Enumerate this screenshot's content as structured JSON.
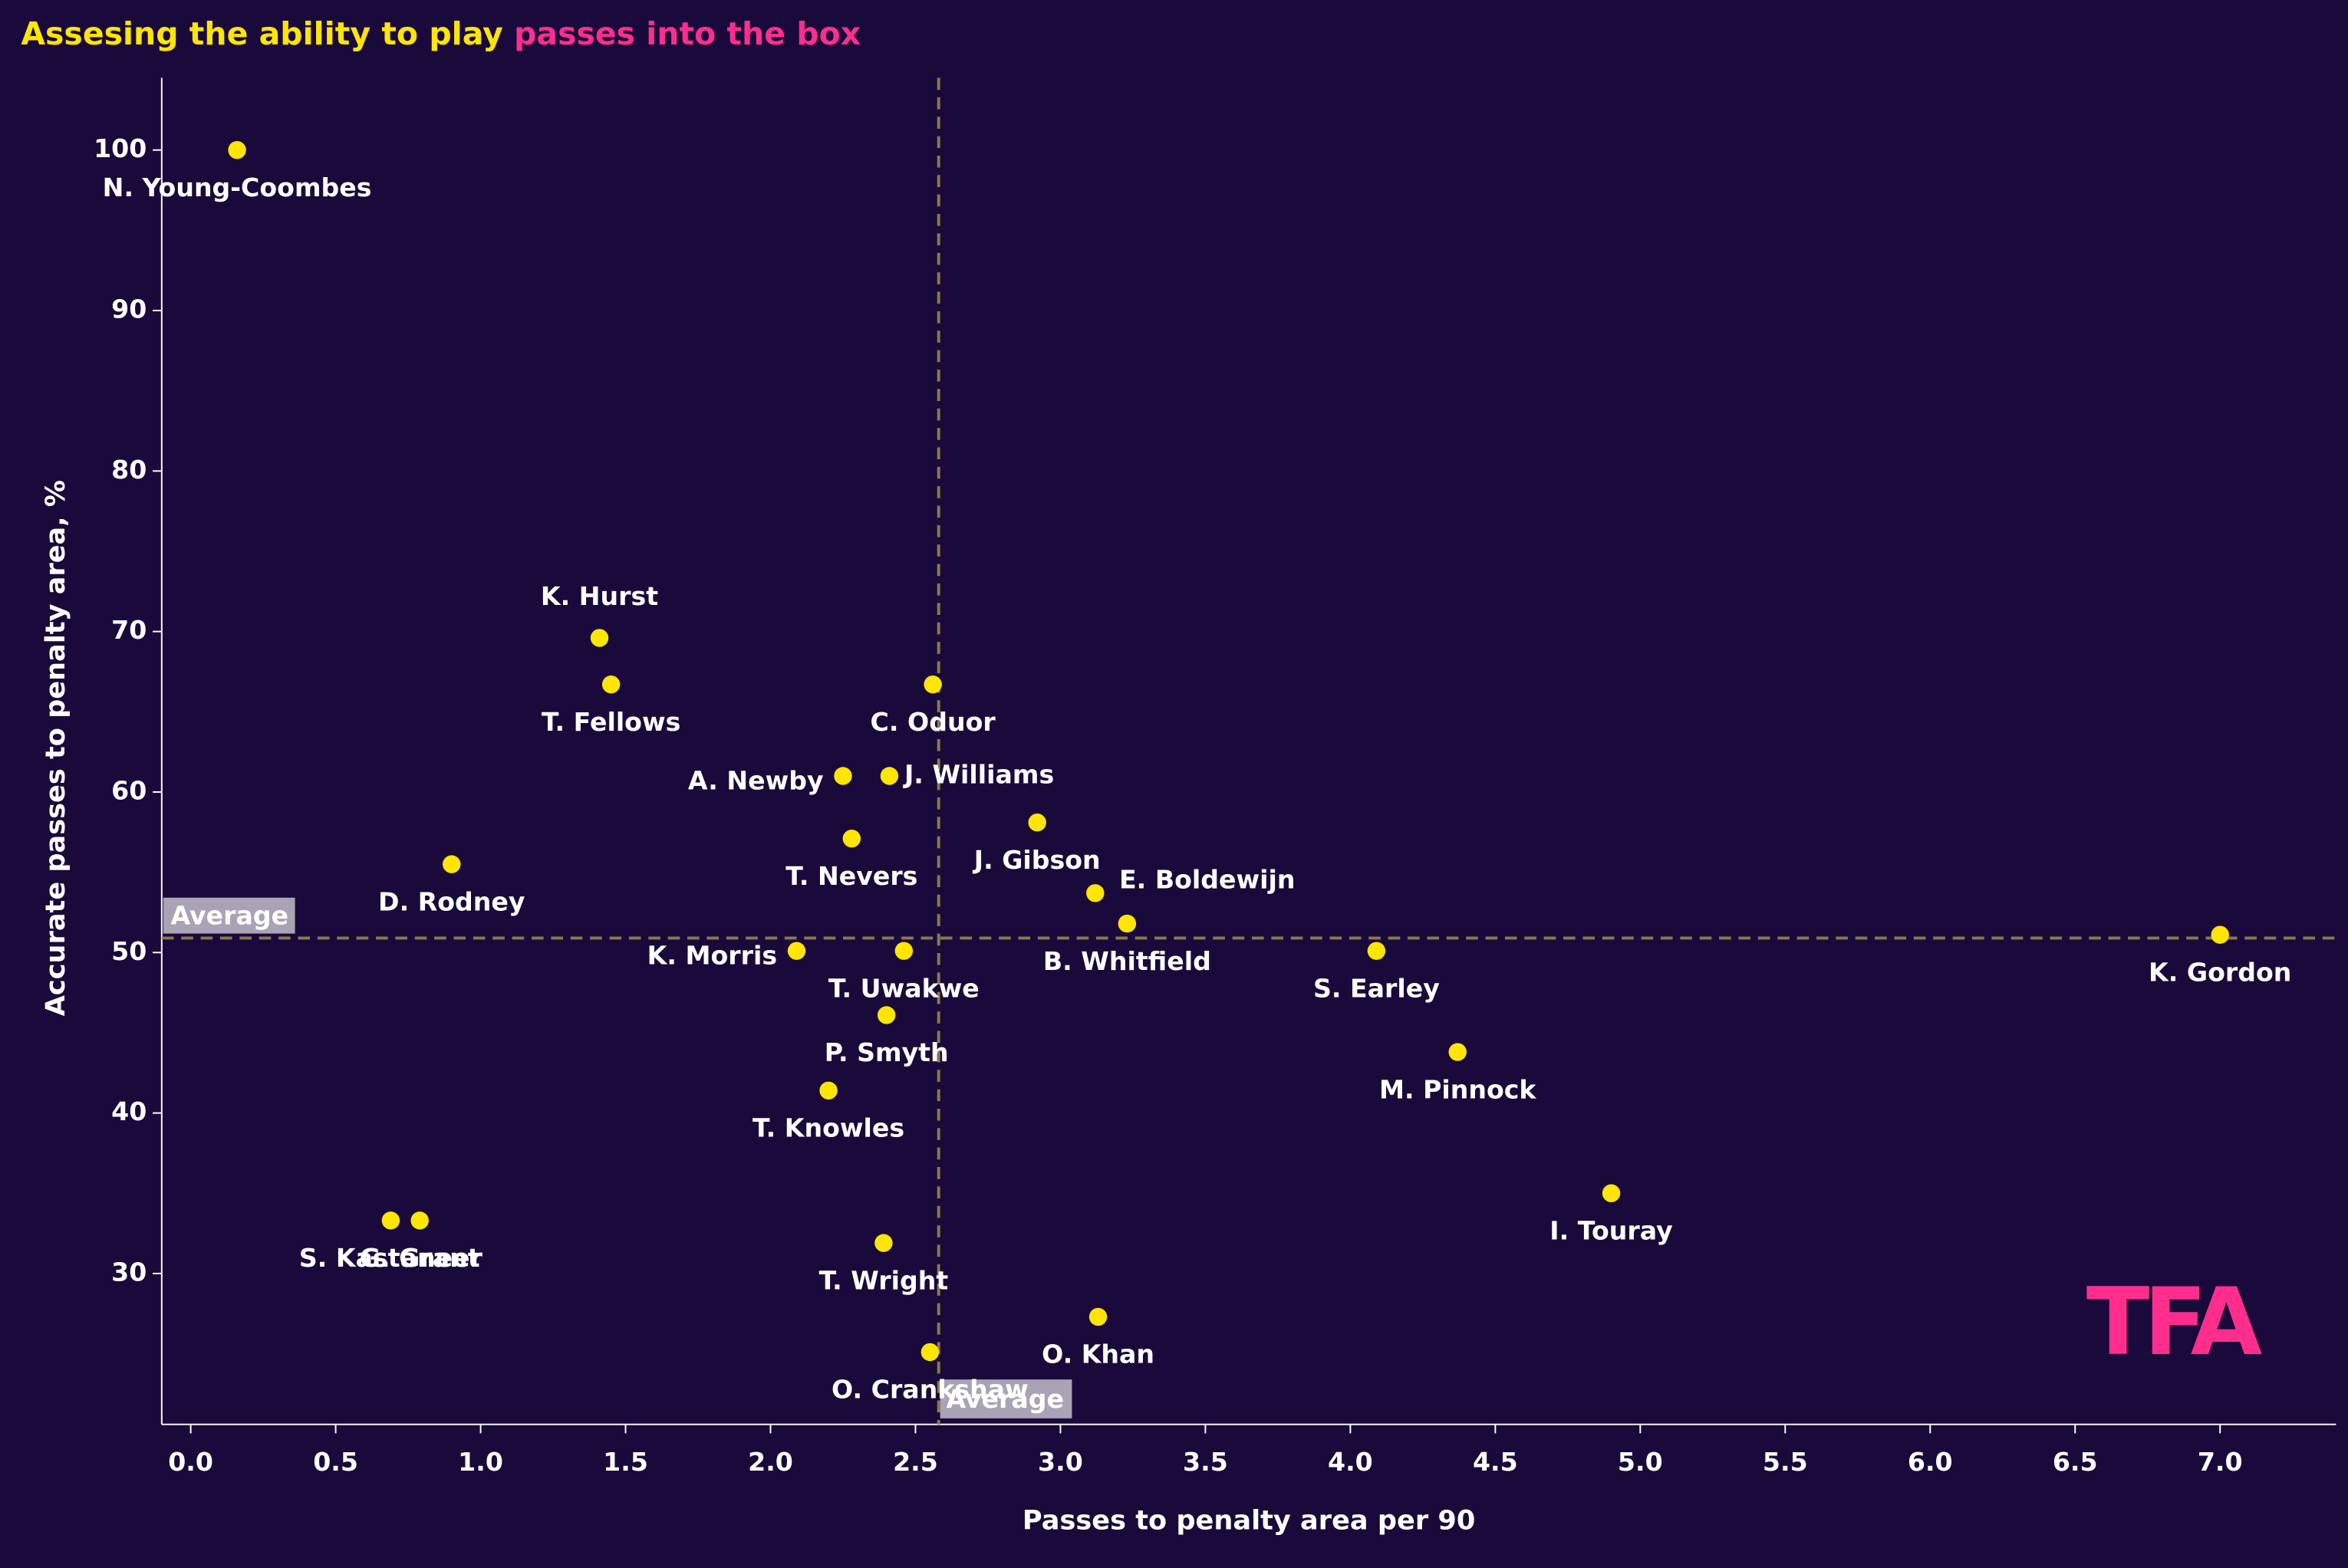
{
  "chart_data": {
    "type": "scatter",
    "title": "Assesing the ability to play ",
    "title_highlight": "passes into the box",
    "x_label": "Passes to penalty area per 90",
    "y_label": "Accurate passes to penalty area, %",
    "logo": "TFA",
    "color": "#ffe600",
    "xlim": [
      -0.1,
      7.4
    ],
    "ylim": [
      20.6,
      104.5
    ],
    "xticks": [
      {
        "value": 0,
        "label": "0.0"
      },
      0.5,
      {
        "value": 1,
        "label": "1.0"
      },
      1.5,
      {
        "value": 2,
        "label": "2.0"
      },
      2.5,
      {
        "value": 3,
        "label": "3.0"
      },
      3.5,
      {
        "value": 4,
        "label": "4.0"
      },
      4.5,
      {
        "value": 5,
        "label": "5.0"
      },
      5.5,
      {
        "value": 6,
        "label": "6.0"
      },
      6.5,
      {
        "value": 7,
        "label": "7.0"
      }
    ],
    "yticks": [
      30,
      40,
      50,
      60,
      70,
      80,
      90,
      100
    ],
    "averages": {
      "x": 2.58,
      "y": 50.9,
      "label": "Average"
    },
    "labels": [
      "N. Young-Coombes",
      "K. Hurst",
      "T. Fellows",
      "C. Oduor",
      "A. Newby",
      "J. Williams",
      "J. Gibson",
      "T. Nevers",
      "D. Rodney",
      "E. Boldewijn",
      "B. Whitfield",
      "K. Gordon",
      "K. Morris",
      "T. Uwakwe",
      "S. Earley",
      "P. Smyth",
      "M. Pinnock",
      "T. Knowles",
      "I. Touray",
      "S. Kastaneer",
      "G. Grant",
      "T. Wright",
      "O. Khan",
      "O. Crankshaw"
    ],
    "x": [
      0.16,
      1.41,
      1.45,
      2.56,
      2.25,
      2.41,
      2.92,
      2.28,
      0.9,
      3.12,
      3.23,
      7.0,
      2.09,
      2.46,
      4.09,
      2.4,
      4.37,
      2.2,
      4.9,
      0.69,
      0.79,
      2.39,
      3.13,
      2.55
    ],
    "y": [
      100,
      69.6,
      66.7,
      66.7,
      61.0,
      61.0,
      58.1,
      57.1,
      55.5,
      53.7,
      51.8,
      51.1,
      50.1,
      50.1,
      50.1,
      46.1,
      43.8,
      41.4,
      35.0,
      33.3,
      33.3,
      31.9,
      27.3,
      25.1
    ]
  }
}
